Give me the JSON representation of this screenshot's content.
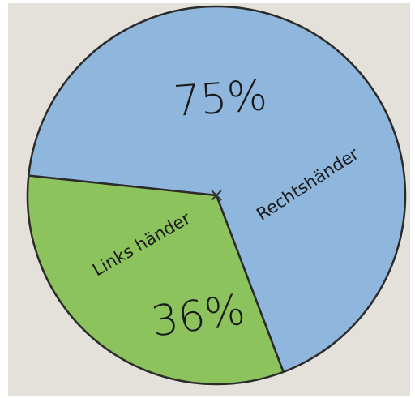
{
  "chart_data": {
    "type": "pie",
    "categories": [
      "Rechtshänder",
      "Links händer"
    ],
    "values": [
      75,
      36
    ],
    "value_labels": [
      "75%",
      "36%"
    ],
    "colors": [
      "#8fb6dc",
      "#8cc35c"
    ]
  }
}
